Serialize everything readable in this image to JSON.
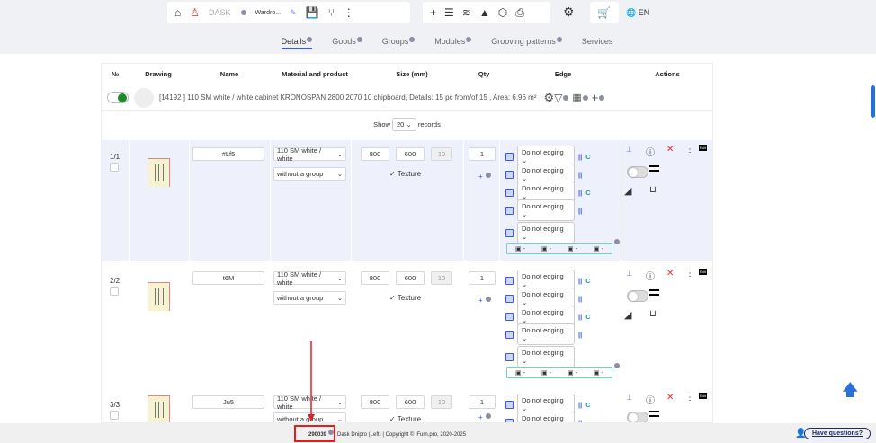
{
  "toolbar": {
    "project_name": "Wardro...",
    "brand": "DASK",
    "language": "EN",
    "icons": [
      "home-icon",
      "user-remove-icon",
      "logo",
      "edit-icon",
      "save-icon",
      "branch-icon",
      "more-icon",
      "plus-icon",
      "list-icon",
      "layers-icon",
      "stamp-icon",
      "box-icon",
      "print-icon",
      "settings-icon",
      "cart-icon",
      "globe-icon"
    ]
  },
  "tabs": [
    {
      "label": "Details",
      "active": true
    },
    {
      "label": "Goods"
    },
    {
      "label": "Groups"
    },
    {
      "label": "Modules"
    },
    {
      "label": "Grooving patterns"
    },
    {
      "label": "Services"
    }
  ],
  "table": {
    "headers": [
      "№",
      "Drawing",
      "Name",
      "Material and product",
      "Size (mm)",
      "Qty",
      "Edge",
      "Actions"
    ],
    "summary": "[14192 ] 110 SM white / white cabinet KRONOSPAN 2800 2070 10 chipboard, Details: 15 pc from/of 15 , Area: 6.96 m²",
    "show_label": "Show",
    "records_value": "20",
    "records_label": "records",
    "rows": [
      {
        "num": "1/1",
        "name": "#Lf5",
        "material": "110 SM white / white",
        "group": "without a group",
        "x": "800",
        "y": "600",
        "z": "10",
        "texture": "Texture",
        "qty": "1"
      },
      {
        "num": "2/2",
        "name": "t6M",
        "material": "110 SM white / white",
        "group": "without a group",
        "x": "800",
        "y": "600",
        "z": "10",
        "texture": "Texture",
        "qty": "1"
      },
      {
        "num": "3/3",
        "name": "Ju5",
        "material": "110 SM white / white",
        "group": "without a group",
        "x": "800",
        "y": "600",
        "z": "10",
        "texture": "Texture",
        "qty": "1"
      }
    ],
    "edge_option": "Do not edging",
    "edge_c": "C",
    "edge_summary": "-"
  },
  "footer": {
    "code": "290039",
    "copyright": "Dask Dnipro (Left) | Copyright © iFurn.pro, 2020-2025",
    "help": "Have questions?"
  },
  "colors": {
    "accent": "#3b5bdb",
    "highlight_row": "#eef0fc",
    "annotation": "#e02020",
    "toggle_on": "#1a8c2c"
  }
}
